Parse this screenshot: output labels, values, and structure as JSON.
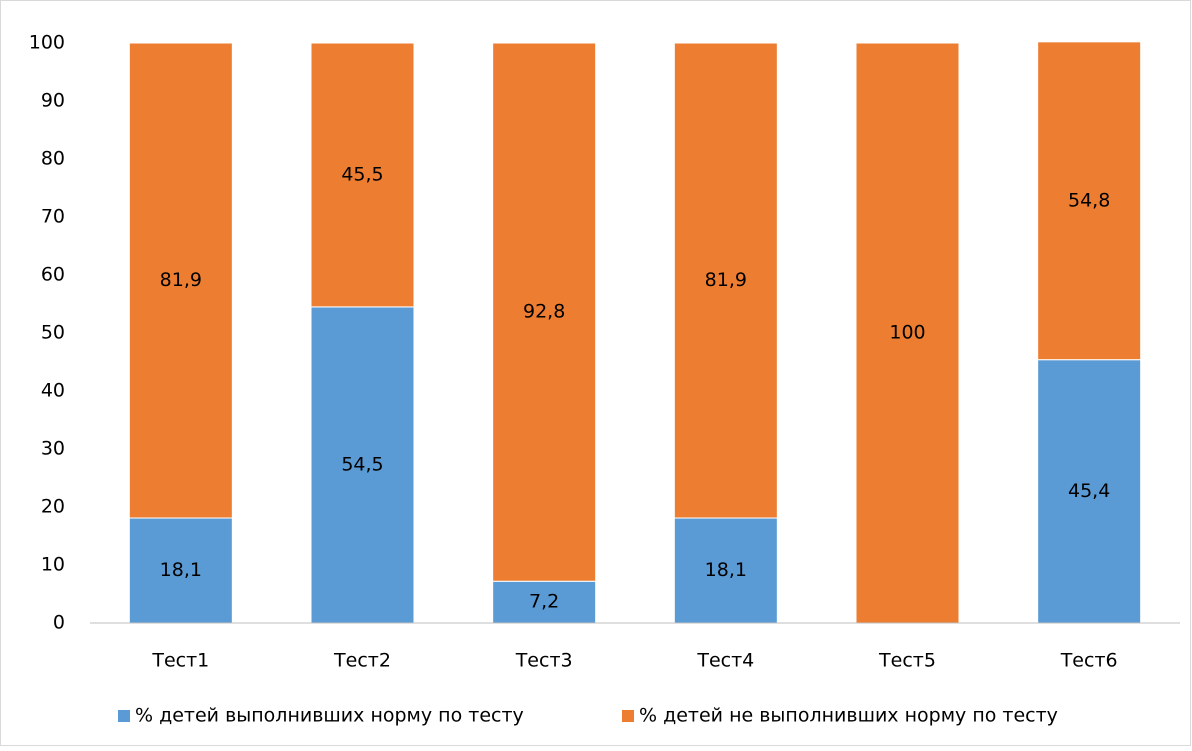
{
  "chart_data": {
    "type": "stacked_bar",
    "categories": [
      "Тест1",
      "Тест2",
      "Тест3",
      "Тест4",
      "Тест5",
      "Тест6"
    ],
    "series": [
      {
        "name": "% детей выполнивших норму по тесту",
        "color": "#5b9bd5",
        "values": [
          18.1,
          54.5,
          7.2,
          18.1,
          0,
          45.4
        ],
        "value_labels": [
          "18,1",
          "54,5",
          "7,2",
          "18,1",
          null,
          "45,4"
        ]
      },
      {
        "name": "% детей не выполнивших норму по тесту",
        "color": "#ed7d31",
        "values": [
          81.9,
          45.5,
          92.8,
          81.9,
          100,
          54.8
        ],
        "value_labels": [
          "81,9",
          "45,5",
          "92,8",
          "81,9",
          "100",
          "54,8"
        ]
      }
    ],
    "ylim": [
      0,
      100
    ],
    "yticks": [
      0,
      10,
      20,
      30,
      40,
      50,
      60,
      70,
      80,
      90,
      100
    ],
    "grid": false,
    "legend": "bottom"
  }
}
